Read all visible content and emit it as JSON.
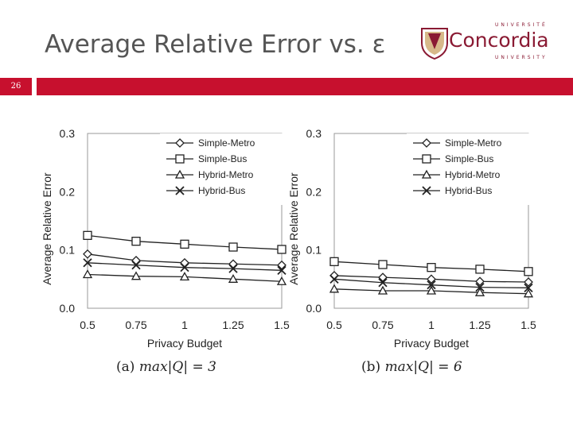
{
  "slide": {
    "title": "Average Relative Error vs. ε",
    "page_number": "26",
    "logo": {
      "top_text": "UNIVERSITÉ",
      "name": "Concordia",
      "bottom_text": "UNIVERSITY"
    },
    "colors": {
      "accent_bar": "#c7102e",
      "title": "#555555",
      "logo": "#8a1a33"
    }
  },
  "chart_data": [
    {
      "type": "line",
      "caption_prefix": "(a)",
      "caption_math": "max|Q| = 3",
      "xlabel": "Privacy Budget",
      "ylabel": "Average Relative Error",
      "x": [
        0.5,
        0.75,
        1,
        1.25,
        1.5
      ],
      "x_tick_labels": [
        "0.5",
        "0.75",
        "1",
        "1.25",
        "1.5"
      ],
      "y_ticks": [
        "0.0",
        "0.1",
        "0.2",
        "0.3"
      ],
      "ylim": [
        0,
        0.3
      ],
      "grid": false,
      "legend_position": "top-right",
      "series": [
        {
          "name": "Simple-Metro",
          "marker": "diamond",
          "values": [
            0.093,
            0.082,
            0.078,
            0.076,
            0.074
          ]
        },
        {
          "name": "Simple-Bus",
          "marker": "square",
          "values": [
            0.125,
            0.115,
            0.11,
            0.105,
            0.101
          ]
        },
        {
          "name": "Hybrid-Metro",
          "marker": "triangle",
          "values": [
            0.058,
            0.055,
            0.054,
            0.05,
            0.046
          ]
        },
        {
          "name": "Hybrid-Bus",
          "marker": "x",
          "values": [
            0.078,
            0.074,
            0.07,
            0.068,
            0.065
          ]
        }
      ]
    },
    {
      "type": "line",
      "caption_prefix": "(b)",
      "caption_math": "max|Q| = 6",
      "xlabel": "Privacy Budget",
      "ylabel": "Average Relative Error",
      "x": [
        0.5,
        0.75,
        1,
        1.25,
        1.5
      ],
      "x_tick_labels": [
        "0.5",
        "0.75",
        "1",
        "1.25",
        "1.5"
      ],
      "y_ticks": [
        "0.0",
        "0.1",
        "0.2",
        "0.3"
      ],
      "ylim": [
        0,
        0.3
      ],
      "grid": false,
      "legend_position": "top-right",
      "series": [
        {
          "name": "Simple-Metro",
          "marker": "diamond",
          "values": [
            0.056,
            0.053,
            0.05,
            0.046,
            0.045
          ]
        },
        {
          "name": "Simple-Bus",
          "marker": "square",
          "values": [
            0.08,
            0.075,
            0.07,
            0.067,
            0.063
          ]
        },
        {
          "name": "Hybrid-Metro",
          "marker": "triangle",
          "values": [
            0.033,
            0.03,
            0.03,
            0.027,
            0.025
          ]
        },
        {
          "name": "Hybrid-Bus",
          "marker": "x",
          "values": [
            0.05,
            0.044,
            0.04,
            0.036,
            0.035
          ]
        }
      ]
    }
  ]
}
